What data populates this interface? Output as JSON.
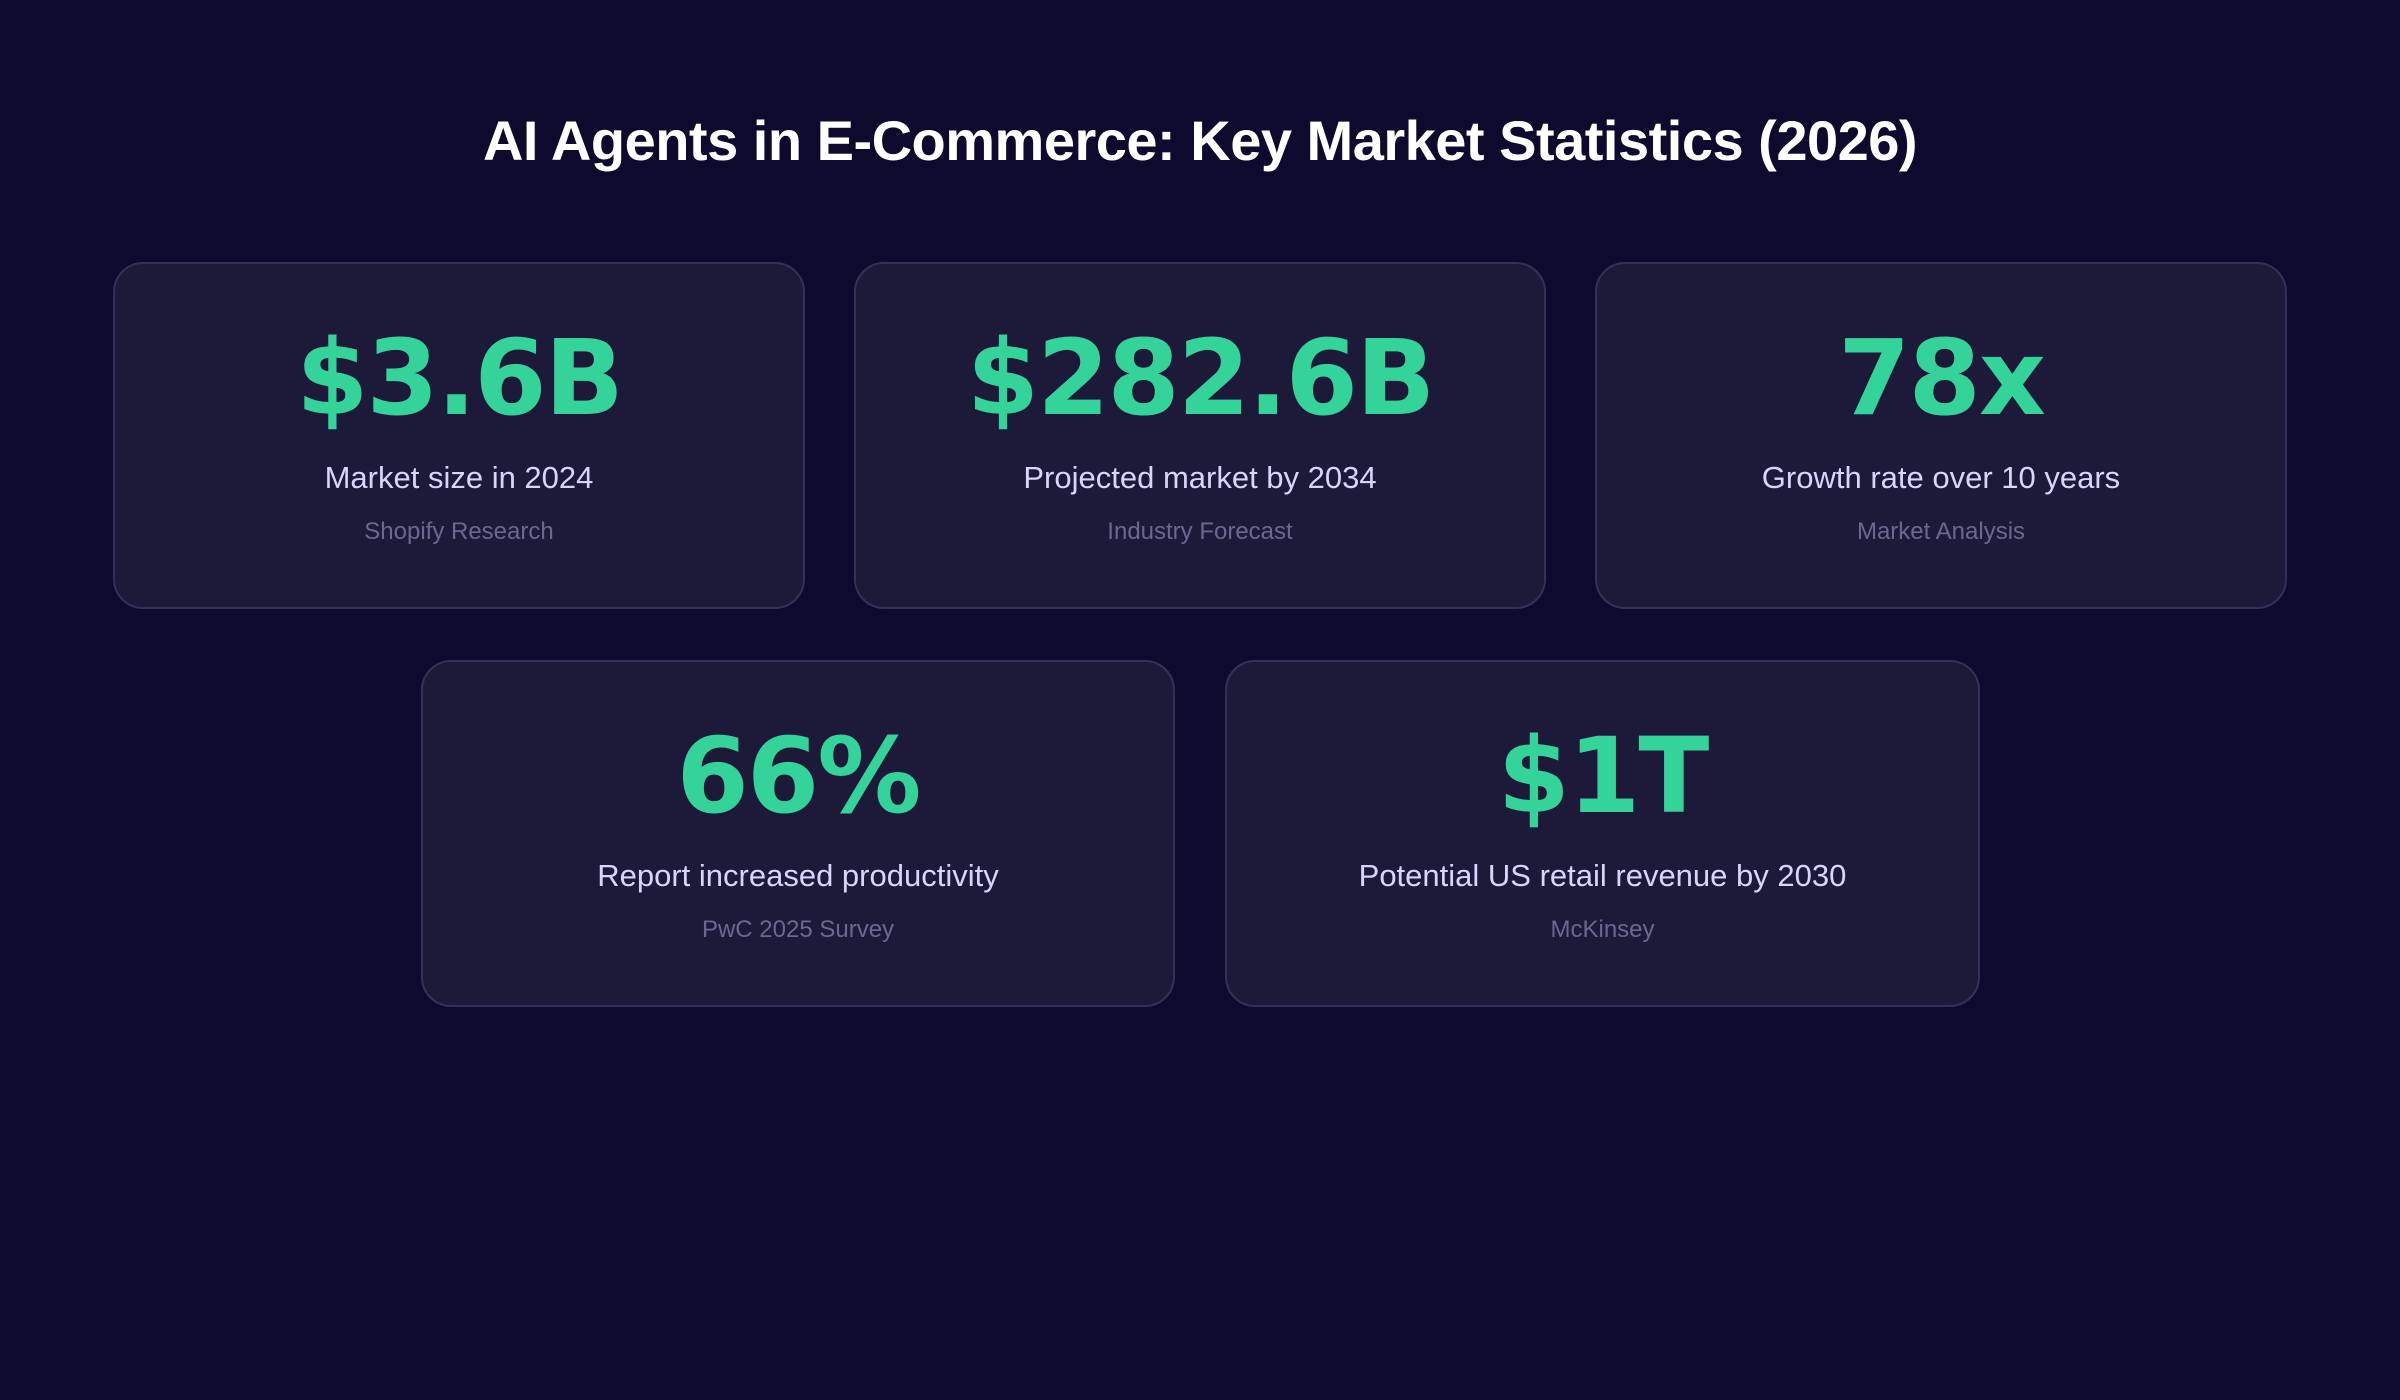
{
  "title": "AI Agents in E-Commerce: Key Market Statistics (2026)",
  "colors": {
    "background": "#0e0a2d",
    "card": "#1d1939",
    "accent": "#34d399",
    "label": "#d6d6fa",
    "source": "#6b6890"
  },
  "stats": [
    {
      "value": "$3.6B",
      "label": "Market size in 2024",
      "source": "Shopify Research"
    },
    {
      "value": "$282.6B",
      "label": "Projected market by 2034",
      "source": "Industry Forecast"
    },
    {
      "value": "78x",
      "label": "Growth rate over 10 years",
      "source": "Market Analysis"
    },
    {
      "value": "66%",
      "label": "Report increased productivity",
      "source": "PwC 2025 Survey"
    },
    {
      "value": "$1T",
      "label": "Potential US retail revenue by 2030",
      "source": "McKinsey"
    }
  ]
}
